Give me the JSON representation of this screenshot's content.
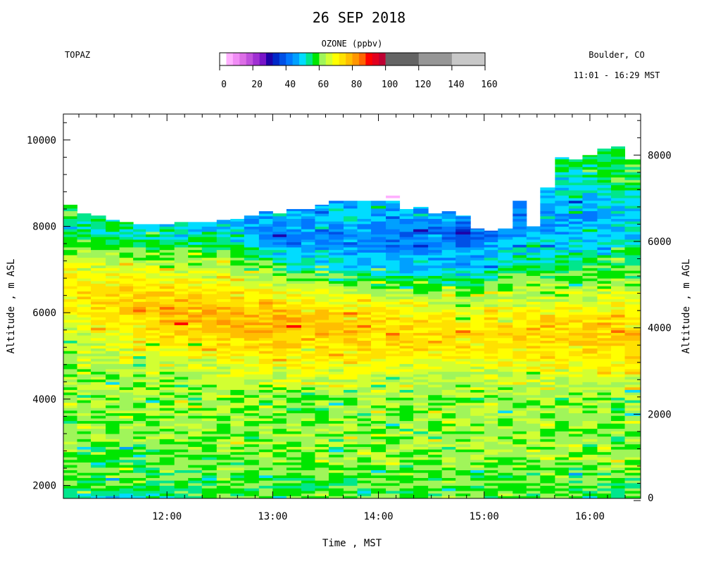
{
  "chart_data": {
    "type": "heatmap",
    "title": "26 SEP 2018",
    "instrument": "TOPAZ",
    "location": "Boulder, CO",
    "time_range": "11:01 - 16:29 MST",
    "colorbar": {
      "title": "OZONE (ppbv)",
      "ticks": [
        "0",
        "20",
        "40",
        "60",
        "80",
        "100",
        "120",
        "140",
        "160"
      ],
      "range": [
        0,
        160
      ],
      "bins": [
        {
          "from": 0,
          "to": 4,
          "color": "#ffffff"
        },
        {
          "from": 4,
          "to": 8,
          "color": "#ffb0ff"
        },
        {
          "from": 8,
          "to": 12,
          "color": "#f08cf5"
        },
        {
          "from": 12,
          "to": 16,
          "color": "#dc6ee6"
        },
        {
          "from": 16,
          "to": 20,
          "color": "#c050dc"
        },
        {
          "from": 20,
          "to": 24,
          "color": "#a02fd2"
        },
        {
          "from": 24,
          "to": 28,
          "color": "#7814c8"
        },
        {
          "from": 28,
          "to": 32,
          "color": "#1e00a8"
        },
        {
          "from": 32,
          "to": 36,
          "color": "#0028c8"
        },
        {
          "from": 36,
          "to": 40,
          "color": "#0050e6"
        },
        {
          "from": 40,
          "to": 44,
          "color": "#0078ff"
        },
        {
          "from": 44,
          "to": 48,
          "color": "#00a0ff"
        },
        {
          "from": 48,
          "to": 52,
          "color": "#00dcff"
        },
        {
          "from": 52,
          "to": 56,
          "color": "#00e68c"
        },
        {
          "from": 56,
          "to": 60,
          "color": "#00e600"
        },
        {
          "from": 60,
          "to": 64,
          "color": "#a0f55a"
        },
        {
          "from": 64,
          "to": 68,
          "color": "#d2ff32"
        },
        {
          "from": 68,
          "to": 72,
          "color": "#ffff00"
        },
        {
          "from": 72,
          "to": 76,
          "color": "#ffe100"
        },
        {
          "from": 76,
          "to": 80,
          "color": "#ffbe00"
        },
        {
          "from": 80,
          "to": 84,
          "color": "#ff9600"
        },
        {
          "from": 84,
          "to": 88,
          "color": "#ff6400"
        },
        {
          "from": 88,
          "to": 92,
          "color": "#ff0000"
        },
        {
          "from": 92,
          "to": 96,
          "color": "#e1001e"
        },
        {
          "from": 96,
          "to": 100,
          "color": "#be0032"
        },
        {
          "from": 100,
          "to": 120,
          "color": "#646464"
        },
        {
          "from": 120,
          "to": 140,
          "color": "#969696"
        },
        {
          "from": 140,
          "to": 160,
          "color": "#c8c8c8"
        }
      ]
    },
    "xlabel": "Time , MST",
    "ylabel_left": "Altitude , m ASL",
    "ylabel_right": "Altitude , m AGL",
    "x_range_hours": [
      11.02,
      16.48
    ],
    "ylim_asl": [
      1700,
      10600
    ],
    "surface_asl": 1650,
    "x_ticks": [
      "12:00",
      "13:00",
      "14:00",
      "15:00",
      "16:00"
    ],
    "y_ticks_left": [
      "2000",
      "4000",
      "6000",
      "8000",
      "10000"
    ],
    "y_ticks_right": [
      "0",
      "2000",
      "4000",
      "6000",
      "8000"
    ],
    "profile_times_hours": [
      11.02,
      11.15,
      11.28,
      11.42,
      11.55,
      11.68,
      11.8,
      11.93,
      12.07,
      12.2,
      12.33,
      12.47,
      12.6,
      12.73,
      12.87,
      13.0,
      13.13,
      13.27,
      13.4,
      13.53,
      13.67,
      13.8,
      13.93,
      14.07,
      14.2,
      14.33,
      14.47,
      14.6,
      14.73,
      14.87,
      15.0,
      15.13,
      15.27,
      15.4,
      15.53,
      15.67,
      15.8,
      15.93,
      16.07,
      16.2,
      16.33
    ],
    "profile_tops_asl": [
      8500,
      8300,
      8250,
      8150,
      8100,
      8050,
      8050,
      8050,
      8100,
      8100,
      8100,
      8150,
      8200,
      8250,
      8350,
      8300,
      8400,
      8400,
      8500,
      8650,
      8800,
      8750,
      8650,
      8800,
      8400,
      8450,
      8300,
      8350,
      8250,
      7950,
      7900,
      7950,
      8800,
      8000,
      8900,
      9600,
      9550,
      9650,
      9800,
      9850,
      9550
    ],
    "ozone_ppbv": {
      "altitude_asl_levels": [
        1700,
        2000,
        2300,
        2700,
        3000,
        3500,
        4000,
        4500,
        5000,
        5500,
        6000,
        6500,
        7000,
        7500,
        7800,
        8200,
        8600,
        9000,
        9500,
        10000
      ],
      "columns": [
        {
          "time_hours": 11.02,
          "values": [
            50,
            58,
            60,
            60,
            62,
            62,
            62,
            62,
            64,
            66,
            70,
            72,
            68,
            60,
            56,
            56,
            0,
            0,
            0,
            0
          ]
        },
        {
          "time_hours": 11.55,
          "values": [
            52,
            58,
            60,
            58,
            60,
            62,
            62,
            62,
            66,
            70,
            76,
            74,
            68,
            60,
            52,
            0,
            0,
            0,
            0,
            0
          ]
        },
        {
          "time_hours": 12.07,
          "values": [
            56,
            58,
            60,
            60,
            62,
            62,
            62,
            64,
            68,
            74,
            80,
            74,
            66,
            58,
            52,
            0,
            0,
            0,
            0,
            0
          ]
        },
        {
          "time_hours": 12.6,
          "values": [
            58,
            58,
            60,
            60,
            62,
            62,
            62,
            64,
            70,
            76,
            78,
            72,
            64,
            56,
            48,
            0,
            0,
            0,
            0,
            0
          ]
        },
        {
          "time_hours": 13.13,
          "values": [
            58,
            58,
            60,
            62,
            62,
            62,
            62,
            66,
            72,
            78,
            76,
            68,
            56,
            46,
            40,
            46,
            0,
            0,
            0,
            0
          ]
        },
        {
          "time_hours": 13.67,
          "values": [
            60,
            58,
            60,
            62,
            62,
            62,
            62,
            66,
            72,
            76,
            74,
            66,
            52,
            46,
            44,
            50,
            0,
            0,
            0,
            0
          ]
        },
        {
          "time_hours": 14.2,
          "values": [
            60,
            60,
            60,
            62,
            64,
            62,
            62,
            64,
            70,
            74,
            72,
            62,
            50,
            44,
            42,
            46,
            0,
            0,
            0,
            0
          ]
        },
        {
          "time_hours": 14.73,
          "values": [
            60,
            60,
            60,
            62,
            64,
            62,
            62,
            64,
            72,
            76,
            70,
            60,
            48,
            44,
            38,
            0,
            0,
            0,
            0,
            0
          ]
        },
        {
          "time_hours": 15.27,
          "values": [
            60,
            60,
            60,
            62,
            62,
            62,
            62,
            66,
            72,
            74,
            70,
            64,
            56,
            50,
            46,
            44,
            0,
            0,
            0,
            0
          ]
        },
        {
          "time_hours": 15.8,
          "values": [
            58,
            60,
            60,
            62,
            62,
            62,
            62,
            66,
            72,
            76,
            72,
            64,
            58,
            52,
            48,
            44,
            48,
            52,
            56,
            0
          ]
        },
        {
          "time_hours": 16.33,
          "values": [
            58,
            58,
            60,
            62,
            62,
            62,
            62,
            66,
            74,
            76,
            72,
            66,
            60,
            54,
            50,
            48,
            52,
            58,
            0,
            0
          ]
        }
      ]
    },
    "grid": false,
    "legend": "colorbar-top"
  }
}
